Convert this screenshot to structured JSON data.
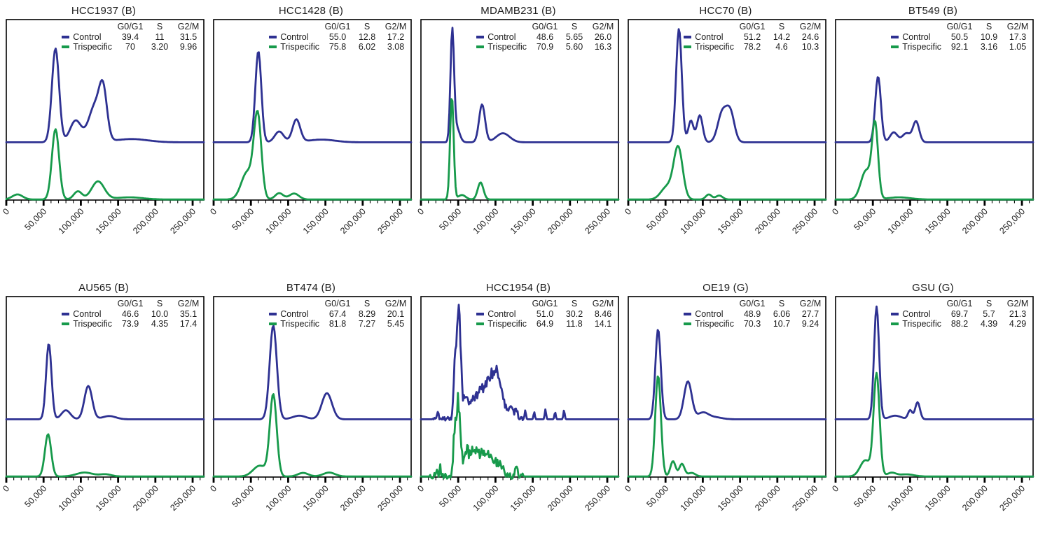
{
  "figure_legend": {
    "col_headers": [
      "G0/G1",
      "S",
      "G2/M"
    ],
    "series_labels": [
      "Control",
      "Trispecific"
    ]
  },
  "colors": {
    "control": "#2e3192",
    "trispecific": "#179a4b",
    "axis": "#000000",
    "background": "#ffffff"
  },
  "x_axis": {
    "tick_values": [
      0,
      50000,
      100000,
      150000,
      200000,
      250000
    ],
    "tick_labels": [
      "0",
      "50,000",
      "100,000",
      "150,000",
      "200,000",
      "250,000"
    ],
    "xmax": 265000,
    "minor_step": 10000,
    "grid": false
  },
  "chart_data": [
    {
      "type": "line",
      "title": "HCC1937 (B)",
      "xlim": [
        0,
        265000
      ],
      "legend_position": "top-right",
      "series": [
        {
          "name": "Control",
          "values": [
            "39.4",
            "11",
            "31.5"
          ],
          "baseline": 0.68,
          "noise": 0,
          "peaks": [
            [
              66000,
              0.52,
              4800
            ],
            [
              93000,
              0.12,
              7500
            ],
            [
              119000,
              0.2,
              8500
            ],
            [
              130000,
              0.245,
              5200
            ],
            [
              168000,
              0.018,
              22000
            ]
          ]
        },
        {
          "name": "Trispecific",
          "values": [
            "70",
            "3.20",
            "9.96"
          ],
          "baseline": 1.0,
          "noise": 0,
          "peaks": [
            [
              66000,
              0.39,
              4800
            ],
            [
              15000,
              0.028,
              7000
            ],
            [
              96000,
              0.045,
              5500
            ],
            [
              123000,
              0.1,
              8500
            ],
            [
              165000,
              0.012,
              18000
            ]
          ]
        }
      ]
    },
    {
      "type": "line",
      "title": "HCC1428 (B)",
      "xlim": [
        0,
        265000
      ],
      "legend_position": "top-right",
      "series": [
        {
          "name": "Control",
          "values": [
            "55.0",
            "12.8",
            "17.2"
          ],
          "baseline": 0.68,
          "noise": 0,
          "peaks": [
            [
              60000,
              0.505,
              4000
            ],
            [
              88000,
              0.06,
              6000
            ],
            [
              111000,
              0.125,
              5200
            ],
            [
              145000,
              0.015,
              18000
            ]
          ]
        },
        {
          "name": "Trispecific",
          "values": [
            "75.8",
            "6.02",
            "3.08"
          ],
          "baseline": 1.0,
          "noise": 0,
          "peaks": [
            [
              59000,
              0.46,
              5000
            ],
            [
              45000,
              0.15,
              8000
            ],
            [
              88000,
              0.035,
              5500
            ],
            [
              108000,
              0.033,
              6500
            ]
          ]
        }
      ]
    },
    {
      "type": "line",
      "title": "MDAMB231 (B)",
      "xlim": [
        0,
        265000
      ],
      "legend_position": "top-right",
      "series": [
        {
          "name": "Control",
          "values": [
            "48.6",
            "5.65",
            "26.0"
          ],
          "baseline": 0.68,
          "noise": 0,
          "peaks": [
            [
              42000,
              0.61,
              2400
            ],
            [
              48000,
              0.08,
              4000
            ],
            [
              82000,
              0.21,
              4000
            ],
            [
              110000,
              0.05,
              9000
            ]
          ]
        },
        {
          "name": "Trispecific",
          "values": [
            "70.9",
            "5.60",
            "16.3"
          ],
          "baseline": 1.0,
          "noise": 0,
          "peaks": [
            [
              41500,
              0.575,
              2400
            ],
            [
              55000,
              0.025,
              5000
            ],
            [
              80000,
              0.095,
              3800
            ]
          ]
        }
      ]
    },
    {
      "type": "line",
      "title": "HCC70 (B)",
      "xlim": [
        0,
        265000
      ],
      "legend_position": "top-right",
      "series": [
        {
          "name": "Control",
          "values": [
            "51.2",
            "14.2",
            "24.6"
          ],
          "baseline": 0.68,
          "noise": 0,
          "peaks": [
            [
              68000,
              0.63,
              3800
            ],
            [
              84000,
              0.12,
              3500
            ],
            [
              96000,
              0.15,
              3800
            ],
            [
              126000,
              0.16,
              6000
            ],
            [
              137000,
              0.16,
              5500
            ]
          ]
        },
        {
          "name": "Trispecific",
          "values": [
            "78.2",
            "4.6",
            "10.3"
          ],
          "baseline": 1.0,
          "noise": 0,
          "peaks": [
            [
              67000,
              0.285,
              6000
            ],
            [
              52000,
              0.07,
              8000
            ],
            [
              108000,
              0.028,
              4000
            ],
            [
              122000,
              0.022,
              4500
            ]
          ]
        }
      ]
    },
    {
      "type": "line",
      "title": "BT549 (B)",
      "xlim": [
        0,
        265000
      ],
      "legend_position": "top-right",
      "series": [
        {
          "name": "Control",
          "values": [
            "50.5",
            "10.9",
            "17.3"
          ],
          "baseline": 0.68,
          "noise": 0,
          "peaks": [
            [
              57000,
              0.365,
              3800
            ],
            [
              78000,
              0.055,
              5000
            ],
            [
              95000,
              0.05,
              5500
            ],
            [
              108000,
              0.115,
              4200
            ]
          ]
        },
        {
          "name": "Trispecific",
          "values": [
            "92.1",
            "3.16",
            "1.05"
          ],
          "baseline": 1.0,
          "noise": 0,
          "peaks": [
            [
              53000,
              0.4,
              4000
            ],
            [
              41000,
              0.16,
              7000
            ],
            [
              85000,
              0.012,
              15000
            ]
          ]
        }
      ]
    },
    {
      "type": "line",
      "title": "AU565 (B)",
      "xlim": [
        0,
        265000
      ],
      "legend_position": "top-right",
      "series": [
        {
          "name": "Control",
          "values": [
            "46.6",
            "10.0",
            "35.1"
          ],
          "baseline": 0.68,
          "noise": 0,
          "peaks": [
            [
              57000,
              0.42,
              3600
            ],
            [
              80000,
              0.05,
              6000
            ],
            [
              110000,
              0.185,
              5200
            ],
            [
              138000,
              0.018,
              9000
            ]
          ]
        },
        {
          "name": "Trispecific",
          "values": [
            "73.9",
            "4.35",
            "17.4"
          ],
          "baseline": 1.0,
          "noise": 0,
          "peaks": [
            [
              56000,
              0.235,
              4200
            ],
            [
              105000,
              0.022,
              11000
            ],
            [
              133000,
              0.012,
              8000
            ]
          ]
        }
      ]
    },
    {
      "type": "line",
      "title": "BT474 (B)",
      "xlim": [
        0,
        265000
      ],
      "legend_position": "top-right",
      "series": [
        {
          "name": "Control",
          "values": [
            "67.4",
            "8.29",
            "20.1"
          ],
          "baseline": 0.68,
          "noise": 0,
          "peaks": [
            [
              80000,
              0.52,
              4800
            ],
            [
              115000,
              0.02,
              9000
            ],
            [
              152000,
              0.145,
              6800
            ]
          ]
        },
        {
          "name": "Trispecific",
          "values": [
            "81.8",
            "7.27",
            "5.45"
          ],
          "baseline": 1.0,
          "noise": 0,
          "peaks": [
            [
              80000,
              0.45,
              4600
            ],
            [
              62000,
              0.06,
              9000
            ],
            [
              120000,
              0.02,
              7000
            ],
            [
              155000,
              0.022,
              8000
            ]
          ]
        }
      ]
    },
    {
      "type": "line",
      "title": "HCC1954 (B)",
      "xlim": [
        0,
        265000
      ],
      "legend_position": "top-right",
      "series": [
        {
          "name": "Control",
          "values": [
            "51.0",
            "30.2",
            "8.46"
          ],
          "baseline": 0.68,
          "noise": 0.035,
          "noise_range": [
            15000,
            138000
          ],
          "peaks": [
            [
              51000,
              0.58,
              2500
            ],
            [
              46000,
              0.28,
              1900
            ],
            [
              60000,
              0.12,
              3000
            ],
            [
              70000,
              0.1,
              4000
            ],
            [
              80000,
              0.1,
              5000
            ],
            [
              95000,
              0.23,
              8500
            ],
            [
              105000,
              0.11,
              5000
            ],
            [
              120000,
              0.05,
              4500
            ],
            [
              23000,
              0.04,
              900
            ],
            [
              128000,
              0.05,
              1400
            ],
            [
              140000,
              0.05,
              900
            ],
            [
              152000,
              0.04,
              900
            ],
            [
              167000,
              0.055,
              900
            ],
            [
              180000,
              0.04,
              900
            ],
            [
              192000,
              0.05,
              900
            ]
          ]
        },
        {
          "name": "Trispecific",
          "values": [
            "64.9",
            "11.8",
            "14.1"
          ],
          "baseline": 1.0,
          "noise": 0.05,
          "noise_range": [
            12000,
            138000
          ],
          "peaks": [
            [
              50000,
              0.4,
              2500
            ],
            [
              45000,
              0.2,
              1900
            ],
            [
              60000,
              0.1,
              4000
            ],
            [
              72000,
              0.13,
              7500
            ],
            [
              90000,
              0.11,
              7500
            ],
            [
              105000,
              0.06,
              5000
            ],
            [
              128000,
              0.075,
              1100
            ],
            [
              21000,
              0.045,
              1200
            ],
            [
              26000,
              0.045,
              1000
            ]
          ]
        }
      ]
    },
    {
      "type": "line",
      "title": "OE19 (G)",
      "xlim": [
        0,
        265000
      ],
      "legend_position": "top-right",
      "series": [
        {
          "name": "Control",
          "values": [
            "48.9",
            "6.06",
            "27.7"
          ],
          "baseline": 0.68,
          "noise": 0,
          "peaks": [
            [
              40000,
              0.5,
              3600
            ],
            [
              80000,
              0.21,
              5200
            ],
            [
              100000,
              0.035,
              7000
            ],
            [
              115000,
              0.012,
              10000
            ]
          ]
        },
        {
          "name": "Trispecific",
          "values": [
            "70.3",
            "10.7",
            "9.24"
          ],
          "baseline": 1.0,
          "noise": 0,
          "peaks": [
            [
              40000,
              0.56,
              3800
            ],
            [
              60000,
              0.085,
              3500
            ],
            [
              72000,
              0.07,
              3500
            ],
            [
              85000,
              0.02,
              5000
            ]
          ]
        }
      ]
    },
    {
      "type": "line",
      "title": "GSU (G)",
      "xlim": [
        0,
        265000
      ],
      "legend_position": "top-right",
      "series": [
        {
          "name": "Control",
          "values": [
            "69.7",
            "5.7",
            "21.3"
          ],
          "baseline": 0.68,
          "noise": 0,
          "peaks": [
            [
              55000,
              0.625,
              3400
            ],
            [
              80000,
              0.02,
              8000
            ],
            [
              100000,
              0.05,
              2800
            ],
            [
              110000,
              0.095,
              3200
            ]
          ]
        },
        {
          "name": "Trispecific",
          "values": [
            "88.2",
            "4.39",
            "4.29"
          ],
          "baseline": 1.0,
          "noise": 0,
          "peaks": [
            [
              55000,
              0.565,
              4000
            ],
            [
              40000,
              0.09,
              7000
            ],
            [
              75000,
              0.02,
              6000
            ],
            [
              95000,
              0.012,
              10000
            ]
          ]
        }
      ]
    }
  ]
}
